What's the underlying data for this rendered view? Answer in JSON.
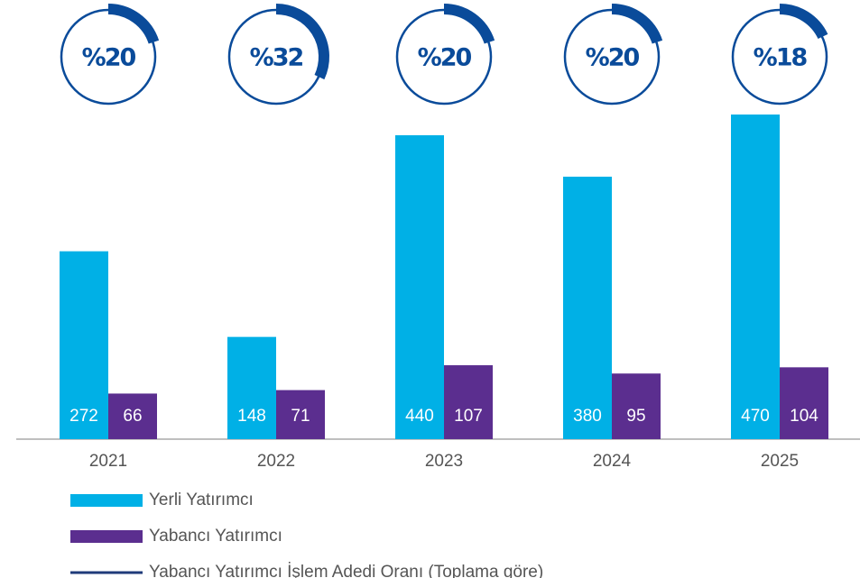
{
  "chart_data": {
    "type": "bar",
    "categories": [
      "2021",
      "2022",
      "2023",
      "2024",
      "2025"
    ],
    "series": [
      {
        "name": "Yerli Yatırımcı",
        "color": "#00b0e6",
        "values": [
          272,
          148,
          440,
          380,
          470
        ]
      },
      {
        "name": "Yabancı Yatırımcı",
        "color": "#5b2e8f",
        "values": [
          66,
          71,
          107,
          95,
          104
        ]
      },
      {
        "name": "Yabancı Yatırımcı İşlem Adedi Oranı (Toplama göre)",
        "color": "#0a4b9a",
        "values": [
          20,
          32,
          20,
          20,
          18
        ],
        "value_labels": [
          "%20",
          "%32",
          "%20",
          "%20",
          "%18"
        ]
      }
    ]
  }
}
